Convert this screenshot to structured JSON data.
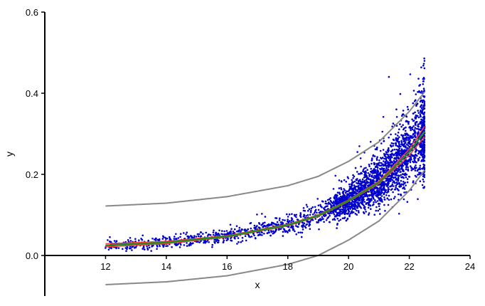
{
  "chart_data": {
    "type": "scatter",
    "title": "",
    "xlabel": "x",
    "ylabel": "y",
    "xlim": [
      10,
      24
    ],
    "ylim": [
      -0.1,
      0.6
    ],
    "xticks": [
      12,
      14,
      16,
      18,
      20,
      22,
      24
    ],
    "yticks": [
      0.0,
      0.2,
      0.4,
      0.6
    ],
    "xtick_labels": [
      "12",
      "14",
      "16",
      "18",
      "20",
      "22",
      "24"
    ],
    "ytick_labels": [
      "0.0",
      "0.2",
      "0.4",
      "0.6"
    ],
    "grid": false,
    "legend": "none",
    "scatter": {
      "color": "#0000cc",
      "approx_point_count": 3000,
      "x_range": [
        12,
        22.5
      ],
      "model": "exponential",
      "cluster_description": "points densest between x=19.5 and x=22, spread widening with x"
    },
    "curves": [
      {
        "role": "fit",
        "color": "#228b22",
        "x": [
          12,
          14,
          16,
          18,
          19,
          20,
          21,
          22,
          22.5
        ],
        "y": [
          0.025,
          0.032,
          0.047,
          0.075,
          0.098,
          0.135,
          0.18,
          0.255,
          0.305
        ]
      },
      {
        "role": "confidence-upper",
        "color": "#ff4040",
        "x": [
          12,
          14,
          16,
          18,
          19,
          20,
          21,
          22,
          22.5
        ],
        "y": [
          0.029,
          0.035,
          0.049,
          0.077,
          0.1,
          0.137,
          0.183,
          0.262,
          0.318
        ]
      },
      {
        "role": "confidence-lower",
        "color": "#ff4040",
        "x": [
          12,
          14,
          16,
          18,
          19,
          20,
          21,
          22,
          22.5
        ],
        "y": [
          0.021,
          0.029,
          0.045,
          0.073,
          0.096,
          0.133,
          0.177,
          0.247,
          0.293
        ]
      },
      {
        "role": "prediction-upper",
        "color": "#888888",
        "x": [
          12,
          14,
          16,
          18,
          19,
          20,
          21,
          22,
          22.5
        ],
        "y": [
          0.122,
          0.129,
          0.145,
          0.172,
          0.195,
          0.232,
          0.28,
          0.355,
          0.403
        ]
      },
      {
        "role": "prediction-lower",
        "color": "#888888",
        "x": [
          12,
          14,
          16,
          18,
          19,
          20,
          21,
          22,
          22.5
        ],
        "y": [
          -0.072,
          -0.065,
          -0.05,
          -0.022,
          0.0,
          0.038,
          0.085,
          0.16,
          0.21
        ]
      }
    ]
  }
}
